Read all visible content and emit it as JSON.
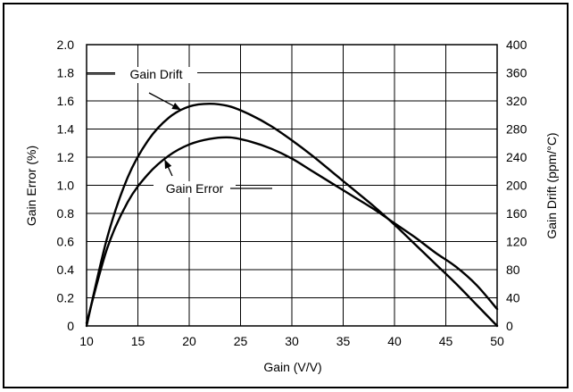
{
  "chart_data": {
    "type": "line",
    "xlabel": "Gain (V/V)",
    "ylabel_left": "Gain Error (%)",
    "ylabel_right": "Gain Drift (ppm/°C)",
    "xlim": [
      10,
      50
    ],
    "ylim_left": [
      0,
      2.0
    ],
    "ylim_right": [
      0,
      400
    ],
    "x_ticks": [
      "10",
      "15",
      "20",
      "25",
      "30",
      "35",
      "40",
      "45",
      "50"
    ],
    "y_left_ticks": [
      "0",
      "0.2",
      "0.4",
      "0.6",
      "0.8",
      "1.0",
      "1.2",
      "1.4",
      "1.6",
      "1.8",
      "2.0"
    ],
    "y_right_ticks": [
      "0",
      "40",
      "80",
      "120",
      "160",
      "200",
      "240",
      "280",
      "320",
      "360",
      "400"
    ],
    "grid": true,
    "series": [
      {
        "name": "Gain Drift",
        "axis": "right",
        "x": [
          10,
          12,
          14,
          16,
          18,
          20,
          22,
          24,
          26,
          28,
          30,
          32,
          34,
          36,
          38,
          40,
          42,
          44,
          46,
          48,
          50
        ],
        "y": [
          0,
          125,
          211,
          264,
          296,
          312,
          316,
          312,
          300,
          284,
          264,
          242,
          218,
          194,
          170,
          144,
          116,
          88,
          60,
          30,
          0
        ]
      },
      {
        "name": "Gain Error",
        "axis": "left",
        "x": [
          10,
          12,
          14,
          16,
          18,
          20,
          22,
          24,
          26,
          28,
          30,
          32,
          34,
          36,
          38,
          40,
          42,
          44,
          46,
          48,
          50
        ],
        "y": [
          0.02,
          0.55,
          0.88,
          1.08,
          1.21,
          1.29,
          1.33,
          1.34,
          1.31,
          1.26,
          1.19,
          1.1,
          1.01,
          0.92,
          0.83,
          0.73,
          0.63,
          0.52,
          0.42,
          0.29,
          0.12
        ]
      }
    ],
    "annotations": [
      {
        "text": "Gain Drift",
        "series": "Gain Drift"
      },
      {
        "text": "Gain Error",
        "series": "Gain Error"
      }
    ]
  }
}
